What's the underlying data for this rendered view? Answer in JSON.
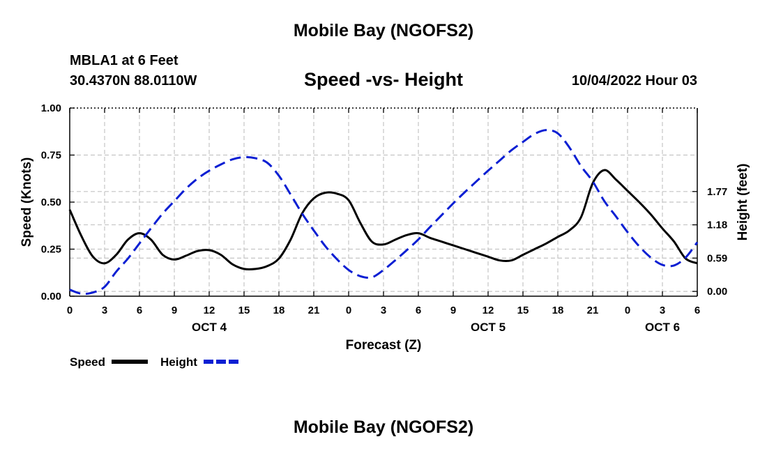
{
  "header": {
    "title": "Mobile Bay (NGOFS2)",
    "station": "MBLA1 at 6 Feet",
    "coords": "30.4370N  88.0110W",
    "chart_title": "Speed -vs- Height",
    "datetime": "10/04/2022 Hour 03"
  },
  "footer": {
    "title": "Mobile Bay (NGOFS2)"
  },
  "chart_data": {
    "type": "line",
    "title": "Speed -vs- Height",
    "xlabel": "Forecast (Z)",
    "ylabel": "Speed (Knots)",
    "y2label": "Height (feet)",
    "x_unit": "hours from Oct 4 00Z",
    "xlim": [
      0,
      54
    ],
    "ylim": [
      0,
      1.0
    ],
    "y2lim": [
      -0.085,
      3.25
    ],
    "x_ticks": [
      0,
      3,
      6,
      9,
      12,
      15,
      18,
      21,
      24,
      27,
      30,
      33,
      36,
      39,
      42,
      45,
      48,
      51,
      54
    ],
    "x_tick_labels": [
      "0",
      "3",
      "6",
      "9",
      "12",
      "15",
      "18",
      "21",
      "0",
      "3",
      "6",
      "9",
      "12",
      "15",
      "18",
      "21",
      "0",
      "3",
      "6"
    ],
    "day_labels": [
      {
        "x": 12,
        "label": "OCT 4"
      },
      {
        "x": 36,
        "label": "OCT 5"
      },
      {
        "x": 51,
        "label": "OCT 6"
      }
    ],
    "y_ticks": [
      0.0,
      0.25,
      0.5,
      0.75,
      1.0
    ],
    "y_tick_labels": [
      "0.00",
      "0.25",
      "0.50",
      "0.75",
      "1.00"
    ],
    "y2_ticks": [
      0.0,
      0.59,
      1.18,
      1.77
    ],
    "y2_tick_labels": [
      "0.00",
      "0.59",
      "1.18",
      "1.77"
    ],
    "grid": true,
    "legend": [
      "Speed",
      "Height"
    ],
    "series": [
      {
        "name": "Speed",
        "axis": "left",
        "color": "#000000",
        "style": "solid",
        "x": [
          0,
          1,
          2,
          3,
          4,
          5,
          6,
          7,
          8,
          9,
          10,
          11,
          12,
          13,
          14,
          15,
          16,
          17,
          18,
          19,
          20,
          21,
          22,
          23,
          24,
          25,
          26,
          27,
          28,
          29,
          30,
          31,
          32,
          33,
          34,
          35,
          36,
          37,
          38,
          39,
          40,
          41,
          42,
          43,
          44,
          45,
          46,
          47,
          48,
          49,
          50,
          51,
          52,
          53,
          54
        ],
        "values": [
          0.46,
          0.32,
          0.21,
          0.175,
          0.22,
          0.3,
          0.335,
          0.3,
          0.22,
          0.195,
          0.215,
          0.24,
          0.245,
          0.22,
          0.17,
          0.145,
          0.145,
          0.16,
          0.2,
          0.3,
          0.44,
          0.52,
          0.55,
          0.545,
          0.51,
          0.39,
          0.29,
          0.275,
          0.3,
          0.325,
          0.335,
          0.31,
          0.29,
          0.27,
          0.25,
          0.23,
          0.21,
          0.19,
          0.19,
          0.22,
          0.25,
          0.28,
          0.315,
          0.35,
          0.42,
          0.6,
          0.67,
          0.62,
          0.56,
          0.5,
          0.435,
          0.36,
          0.29,
          0.2,
          0.175
        ]
      },
      {
        "name": "Height",
        "axis": "right",
        "color": "#0b1fd3",
        "style": "dashed",
        "x": [
          0,
          1,
          2,
          3,
          4,
          5,
          6,
          7,
          8,
          9,
          10,
          11,
          12,
          13,
          14,
          15,
          16,
          17,
          18,
          19,
          20,
          21,
          22,
          23,
          24,
          25,
          26,
          27,
          28,
          29,
          30,
          31,
          32,
          33,
          34,
          35,
          36,
          37,
          38,
          39,
          40,
          41,
          42,
          43,
          44,
          45,
          46,
          47,
          48,
          49,
          50,
          51,
          52,
          53,
          54
        ],
        "values": [
          0.03,
          -0.04,
          -0.02,
          0.08,
          0.35,
          0.58,
          0.85,
          1.12,
          1.38,
          1.6,
          1.82,
          2.0,
          2.14,
          2.25,
          2.34,
          2.38,
          2.36,
          2.28,
          2.05,
          1.72,
          1.38,
          1.08,
          0.8,
          0.57,
          0.38,
          0.27,
          0.25,
          0.38,
          0.55,
          0.73,
          0.92,
          1.14,
          1.35,
          1.56,
          1.76,
          1.95,
          2.14,
          2.32,
          2.5,
          2.65,
          2.79,
          2.86,
          2.8,
          2.55,
          2.22,
          1.95,
          1.6,
          1.33,
          1.05,
          0.8,
          0.6,
          0.47,
          0.46,
          0.6,
          0.87
        ]
      }
    ]
  }
}
